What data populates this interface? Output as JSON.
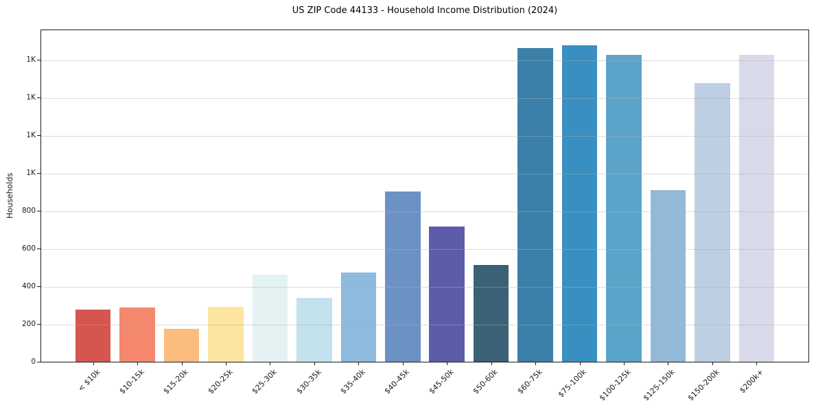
{
  "chart_data": {
    "type": "bar",
    "title": "US ZIP Code 44133 - Household Income Distribution (2024)",
    "xlabel": "",
    "ylabel": "Households",
    "categories": [
      "< $10k",
      "$10-15k",
      "$15-20k",
      "$20-25k",
      "$25-30k",
      "$30-35k",
      "$35-40k",
      "$40-45k",
      "$45-50k",
      "$50-60k",
      "$60-75k",
      "$75-100k",
      "$100-125k",
      "$125-150k",
      "$150-200k",
      "$200k+"
    ],
    "values": [
      276,
      288,
      174,
      291,
      462,
      338,
      473,
      902,
      717,
      513,
      1664,
      1678,
      1627,
      911,
      1478,
      1627
    ],
    "bar_colors": [
      "#d5564e",
      "#f4876c",
      "#fbbc7d",
      "#fde5a1",
      "#e5f2f4",
      "#c1e1ed",
      "#8ebadd",
      "#6c91c5",
      "#5c5cab",
      "#3a6175",
      "#3a80a9",
      "#398fc1",
      "#5aa4c9",
      "#92bad8",
      "#bfcfe3",
      "#d8dae9"
    ],
    "ylim": [
      0,
      1765
    ],
    "yticks": [
      {
        "value": 0,
        "label": "0"
      },
      {
        "value": 200,
        "label": "200"
      },
      {
        "value": 400,
        "label": "400"
      },
      {
        "value": 600,
        "label": "600"
      },
      {
        "value": 800,
        "label": "800"
      },
      {
        "value": 1000,
        "label": "1K"
      },
      {
        "value": 1200,
        "label": "1K"
      },
      {
        "value": 1400,
        "label": "1K"
      },
      {
        "value": 1600,
        "label": "1K"
      }
    ],
    "grid": "horizontal",
    "grid_color": "#b0b0b0",
    "legend": "none",
    "background": "#ffffff",
    "spine_color": "#1a1a1a"
  }
}
